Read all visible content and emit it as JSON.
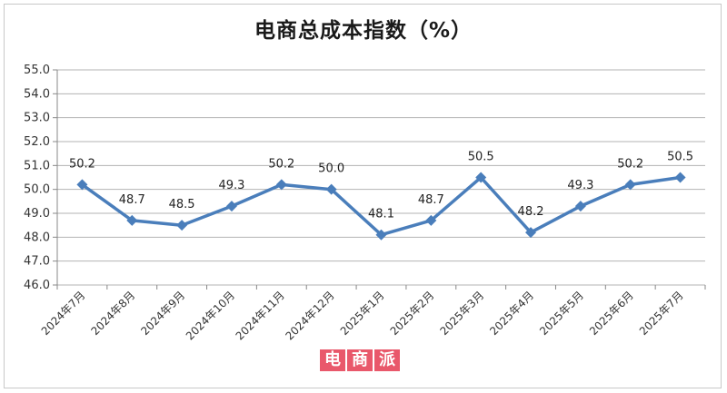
{
  "chart_data": {
    "type": "line",
    "title": "电商总成本指数（%）",
    "categories": [
      "2024年7月",
      "2024年8月",
      "2024年9月",
      "2024年10月",
      "2024年11月",
      "2024年12月",
      "2025年1月",
      "2025年2月",
      "2025年3月",
      "2025年4月",
      "2025年5月",
      "2025年6月",
      "2025年7月"
    ],
    "series": [
      {
        "values": [
          50.2,
          48.7,
          48.5,
          49.3,
          50.2,
          50.0,
          48.1,
          48.7,
          50.5,
          48.2,
          49.3,
          50.2,
          50.5
        ]
      }
    ],
    "data_labels": [
      "50.2",
      "48.7",
      "48.5",
      "49.3",
      "50.2",
      "50.0",
      "48.1",
      "48.7",
      "50.5",
      "48.2",
      "49.3",
      "50.2",
      "50.5"
    ],
    "yticks": [
      "46.0",
      "47.0",
      "48.0",
      "49.0",
      "50.0",
      "51.0",
      "52.0",
      "53.0",
      "54.0",
      "55.0"
    ],
    "ylim": [
      46,
      55
    ],
    "grid": true,
    "legend": "none",
    "line_color": "#4a7ebb"
  },
  "watermark": {
    "text": "电商派",
    "chars": [
      "电",
      "商",
      "派"
    ],
    "color": "#e7465c"
  }
}
